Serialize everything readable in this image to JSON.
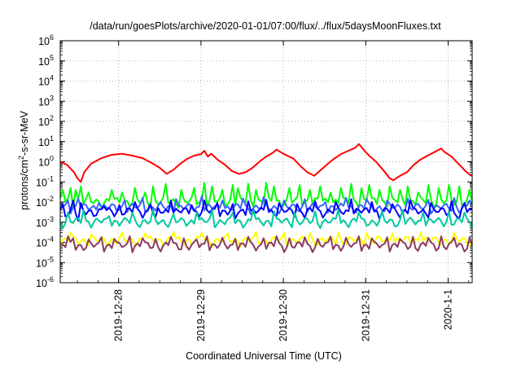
{
  "chart_data": {
    "type": "line",
    "title": "/data/run/goesPlots/archive/2020-01-01/07:00/flux/../flux/5daysMoonFluxes.txt",
    "xlabel": "Coordinated Universal Time (UTC)",
    "ylabel": {
      "prefix": "protons/cm",
      "sup": "2",
      "suffix": "-s-sr-MeV"
    },
    "yscale": "log",
    "ylim": [
      -6,
      6
    ],
    "y_ticks": [
      {
        "base": "10",
        "exp": "-6",
        "value": -6
      },
      {
        "base": "10",
        "exp": "-5",
        "value": -5
      },
      {
        "base": "10",
        "exp": "-4",
        "value": -4
      },
      {
        "base": "10",
        "exp": "-3",
        "value": -3
      },
      {
        "base": "10",
        "exp": "-2",
        "value": -2
      },
      {
        "base": "10",
        "exp": "-1",
        "value": -1
      },
      {
        "base": "10",
        "exp": "0",
        "value": 0
      },
      {
        "base": "10",
        "exp": "1",
        "value": 1
      },
      {
        "base": "10",
        "exp": "2",
        "value": 2
      },
      {
        "base": "10",
        "exp": "3",
        "value": 3
      },
      {
        "base": "10",
        "exp": "4",
        "value": 4
      },
      {
        "base": "10",
        "exp": "5",
        "value": 5
      },
      {
        "base": "10",
        "exp": "6",
        "value": 6
      }
    ],
    "xlim": [
      "2019-12-27 07:00",
      "2020-01-01 07:00"
    ],
    "x_ticks": [
      {
        "label": "2019-12-28",
        "value": "2019-12-28 00:00"
      },
      {
        "label": "2019-12-29",
        "value": "2019-12-29 00:00"
      },
      {
        "label": "2019-12-30",
        "value": "2019-12-30 00:00"
      },
      {
        "label": "2019-12-31",
        "value": "2019-12-31 00:00"
      },
      {
        "label": "2020-1-1",
        "value": "2020-01-01 00:00"
      }
    ],
    "grid": true,
    "grid_style": "dotted",
    "legend": "none",
    "series": [
      {
        "color": "#ff0000",
        "points": [
          [
            "2019-12-27 07:00",
            1.0
          ],
          [
            "2019-12-27 09:00",
            0.7
          ],
          [
            "2019-12-27 11:00",
            0.3
          ],
          [
            "2019-12-27 12:00",
            0.15
          ],
          [
            "2019-12-27 13:00",
            0.1
          ],
          [
            "2019-12-27 14:00",
            0.3
          ],
          [
            "2019-12-27 16:00",
            0.8
          ],
          [
            "2019-12-27 19:00",
            1.5
          ],
          [
            "2019-12-27 22:00",
            2.2
          ],
          [
            "2019-12-28 01:00",
            2.5
          ],
          [
            "2019-12-28 04:00",
            2.0
          ],
          [
            "2019-12-28 07:00",
            1.5
          ],
          [
            "2019-12-28 10:00",
            0.8
          ],
          [
            "2019-12-28 12:00",
            0.5
          ],
          [
            "2019-12-28 14:00",
            0.25
          ],
          [
            "2019-12-28 16:00",
            0.4
          ],
          [
            "2019-12-28 18:00",
            0.8
          ],
          [
            "2019-12-28 20:00",
            1.4
          ],
          [
            "2019-12-28 22:00",
            2.0
          ],
          [
            "2019-12-29 00:00",
            2.4
          ],
          [
            "2019-12-29 01:00",
            3.5
          ],
          [
            "2019-12-29 02:00",
            1.8
          ],
          [
            "2019-12-29 03:00",
            2.5
          ],
          [
            "2019-12-29 05:00",
            1.2
          ],
          [
            "2019-12-29 07:00",
            0.7
          ],
          [
            "2019-12-29 09:00",
            0.35
          ],
          [
            "2019-12-29 11:00",
            0.25
          ],
          [
            "2019-12-29 13:00",
            0.3
          ],
          [
            "2019-12-29 15:00",
            0.5
          ],
          [
            "2019-12-29 17:00",
            1.0
          ],
          [
            "2019-12-29 19:00",
            1.8
          ],
          [
            "2019-12-29 21:00",
            2.8
          ],
          [
            "2019-12-29 22:00",
            4.0
          ],
          [
            "2019-12-30 00:00",
            2.5
          ],
          [
            "2019-12-30 03:00",
            1.4
          ],
          [
            "2019-12-30 05:00",
            0.6
          ],
          [
            "2019-12-30 07:00",
            0.3
          ],
          [
            "2019-12-30 09:00",
            0.2
          ],
          [
            "2019-12-30 11:00",
            0.4
          ],
          [
            "2019-12-30 13:00",
            0.8
          ],
          [
            "2019-12-30 15:00",
            1.5
          ],
          [
            "2019-12-30 17:00",
            2.5
          ],
          [
            "2019-12-30 19:00",
            3.5
          ],
          [
            "2019-12-30 21:00",
            5.0
          ],
          [
            "2019-12-30 22:00",
            7.5
          ],
          [
            "2019-12-31 00:00",
            3.0
          ],
          [
            "2019-12-31 01:00",
            2.0
          ],
          [
            "2019-12-31 03:00",
            1.0
          ],
          [
            "2019-12-31 05:00",
            0.4
          ],
          [
            "2019-12-31 07:00",
            0.15
          ],
          [
            "2019-12-31 08:00",
            0.12
          ],
          [
            "2019-12-31 10:00",
            0.2
          ],
          [
            "2019-12-31 12:00",
            0.3
          ],
          [
            "2019-12-31 14:00",
            0.7
          ],
          [
            "2019-12-31 16:00",
            1.3
          ],
          [
            "2019-12-31 18:00",
            2.0
          ],
          [
            "2019-12-31 20:00",
            3.0
          ],
          [
            "2019-12-31 22:00",
            4.5
          ],
          [
            "2019-12-31 23:00",
            3.0
          ],
          [
            "2020-01-01 01:00",
            1.8
          ],
          [
            "2020-01-01 03:00",
            0.8
          ],
          [
            "2020-01-01 05:00",
            0.35
          ],
          [
            "2020-01-01 06:00",
            0.25
          ],
          [
            "2020-01-01 07:00",
            0.2
          ]
        ]
      },
      {
        "color": "#00ff00",
        "baseline": 0.011,
        "spikes": [
          [
            "2019-12-27 07:30",
            0.04
          ],
          [
            "2019-12-27 10:00",
            0.05
          ],
          [
            "2019-12-27 11:30",
            0.04
          ],
          [
            "2019-12-27 13:00",
            0.06
          ],
          [
            "2019-12-27 15:30",
            0.03
          ],
          [
            "2019-12-27 22:00",
            0.04
          ],
          [
            "2019-12-28 01:00",
            0.03
          ],
          [
            "2019-12-28 05:00",
            0.05
          ],
          [
            "2019-12-28 08:00",
            0.03
          ],
          [
            "2019-12-28 10:00",
            0.06
          ],
          [
            "2019-12-28 14:00",
            0.08
          ],
          [
            "2019-12-28 18:00",
            0.04
          ],
          [
            "2019-12-28 22:00",
            0.05
          ],
          [
            "2019-12-29 01:00",
            0.09
          ],
          [
            "2019-12-29 03:00",
            0.06
          ],
          [
            "2019-12-29 06:00",
            0.04
          ],
          [
            "2019-12-29 09:00",
            0.07
          ],
          [
            "2019-12-29 11:00",
            0.05
          ],
          [
            "2019-12-29 14:00",
            0.08
          ],
          [
            "2019-12-29 16:00",
            0.04
          ],
          [
            "2019-12-29 19:00",
            0.09
          ],
          [
            "2019-12-29 21:00",
            0.06
          ],
          [
            "2019-12-30 02:00",
            0.05
          ],
          [
            "2019-12-30 05:00",
            0.07
          ],
          [
            "2019-12-30 08:00",
            0.04
          ],
          [
            "2019-12-30 11:00",
            0.06
          ],
          [
            "2019-12-30 14:00",
            0.03
          ],
          [
            "2019-12-30 17:00",
            0.05
          ],
          [
            "2019-12-30 20:00",
            0.08
          ],
          [
            "2019-12-30 23:00",
            0.05
          ],
          [
            "2019-12-31 01:00",
            0.07
          ],
          [
            "2019-12-31 04:00",
            0.04
          ],
          [
            "2019-12-31 07:00",
            0.06
          ],
          [
            "2019-12-31 10:00",
            0.04
          ],
          [
            "2019-12-31 12:00",
            0.06
          ],
          [
            "2019-12-31 15:00",
            0.03
          ],
          [
            "2019-12-31 18:00",
            0.07
          ],
          [
            "2019-12-31 21:00",
            0.05
          ],
          [
            "2020-01-01 00:00",
            0.07
          ],
          [
            "2020-01-01 03:00",
            0.06
          ],
          [
            "2020-01-01 06:00",
            0.04
          ]
        ]
      },
      {
        "color": "#3b64ff",
        "baseline": 0.0055,
        "spikes": [
          [
            "2019-12-27 09:00",
            0.012
          ],
          [
            "2019-12-27 12:00",
            0.015
          ],
          [
            "2019-12-27 18:00",
            0.009
          ],
          [
            "2019-12-28 02:00",
            0.012
          ],
          [
            "2019-12-28 07:00",
            0.016
          ],
          [
            "2019-12-28 12:00",
            0.01
          ],
          [
            "2019-12-28 17:00",
            0.014
          ],
          [
            "2019-12-29 00:00",
            0.02
          ],
          [
            "2019-12-29 06:00",
            0.012
          ],
          [
            "2019-12-29 12:00",
            0.015
          ],
          [
            "2019-12-29 18:00",
            0.018
          ],
          [
            "2019-12-30 00:00",
            0.012
          ],
          [
            "2019-12-30 06:00",
            0.014
          ],
          [
            "2019-12-30 12:00",
            0.01
          ],
          [
            "2019-12-30 18:00",
            0.016
          ],
          [
            "2019-12-31 00:00",
            0.014
          ],
          [
            "2019-12-31 06:00",
            0.012
          ],
          [
            "2019-12-31 12:00",
            0.015
          ],
          [
            "2019-12-31 18:00",
            0.013
          ],
          [
            "2020-01-01 02:00",
            0.016
          ],
          [
            "2020-01-01 06:00",
            0.012
          ]
        ]
      },
      {
        "color": "#0000ff",
        "baseline": 0.0035,
        "spikes": [
          [
            "2019-12-27 08:00",
            0.008
          ],
          [
            "2019-12-27 10:30",
            0.012
          ],
          [
            "2019-12-27 13:00",
            0.009
          ],
          [
            "2019-12-27 20:00",
            0.006
          ],
          [
            "2019-12-28 00:00",
            0.007
          ],
          [
            "2019-12-28 05:00",
            0.01
          ],
          [
            "2019-12-28 09:00",
            0.008
          ],
          [
            "2019-12-28 15:00",
            0.012
          ],
          [
            "2019-12-28 21:00",
            0.007
          ],
          [
            "2019-12-29 01:00",
            0.012
          ],
          [
            "2019-12-29 05:00",
            0.009
          ],
          [
            "2019-12-29 09:00",
            0.008
          ],
          [
            "2019-12-29 14:00",
            0.011
          ],
          [
            "2019-12-29 19:00",
            0.013
          ],
          [
            "2019-12-29 23:00",
            0.009
          ],
          [
            "2019-12-30 04:00",
            0.008
          ],
          [
            "2019-12-30 09:00",
            0.011
          ],
          [
            "2019-12-30 15:00",
            0.01
          ],
          [
            "2019-12-30 20:00",
            0.014
          ],
          [
            "2019-12-31 02:00",
            0.01
          ],
          [
            "2019-12-31 08:00",
            0.008
          ],
          [
            "2019-12-31 13:00",
            0.012
          ],
          [
            "2019-12-31 19:00",
            0.009
          ],
          [
            "2020-01-01 01:00",
            0.011
          ],
          [
            "2020-01-01 05:00",
            0.009
          ]
        ],
        "dips": [
          [
            "2019-12-27 12:00",
            0.0012
          ],
          [
            "2019-12-28 11:00",
            0.0018
          ],
          [
            "2019-12-29 10:00",
            0.0015
          ],
          [
            "2019-12-30 06:00",
            0.0016
          ],
          [
            "2019-12-31 04:00",
            0.0014
          ],
          [
            "2020-01-01 03:00",
            0.0015
          ]
        ]
      },
      {
        "color": "#00c8a0",
        "baseline": 0.0011,
        "spikes": [
          [
            "2019-12-27 09:00",
            0.003
          ],
          [
            "2019-12-27 14:00",
            0.004
          ],
          [
            "2019-12-27 21:00",
            0.002
          ],
          [
            "2019-12-28 04:00",
            0.003
          ],
          [
            "2019-12-28 10:00",
            0.004
          ],
          [
            "2019-12-28 16:00",
            0.0025
          ],
          [
            "2019-12-28 23:00",
            0.003
          ],
          [
            "2019-12-29 03:00",
            0.004
          ],
          [
            "2019-12-29 09:00",
            0.003
          ],
          [
            "2019-12-29 15:00",
            0.004
          ],
          [
            "2019-12-29 21:00",
            0.0035
          ],
          [
            "2019-12-30 03:00",
            0.003
          ],
          [
            "2019-12-30 09:00",
            0.0035
          ],
          [
            "2019-12-30 16:00",
            0.004
          ],
          [
            "2019-12-30 22:00",
            0.003
          ],
          [
            "2019-12-31 05:00",
            0.0035
          ],
          [
            "2019-12-31 11:00",
            0.004
          ],
          [
            "2019-12-31 17:00",
            0.003
          ],
          [
            "2020-01-01 00:00",
            0.0035
          ],
          [
            "2020-01-01 05:00",
            0.003
          ]
        ]
      },
      {
        "color": "#ffff00",
        "baseline": 0.00013,
        "spikes": [
          [
            "2019-12-27 10:00",
            0.0003
          ],
          [
            "2019-12-27 16:00",
            0.00025
          ],
          [
            "2019-12-28 01:00",
            0.0003
          ],
          [
            "2019-12-28 08:00",
            0.00028
          ],
          [
            "2019-12-28 16:00",
            0.00032
          ],
          [
            "2019-12-29 00:00",
            0.0003
          ],
          [
            "2019-12-29 08:00",
            0.00028
          ],
          [
            "2019-12-29 16:00",
            0.00033
          ],
          [
            "2019-12-30 00:00",
            0.0003
          ],
          [
            "2019-12-30 08:00",
            0.00029
          ],
          [
            "2019-12-30 16:00",
            0.00031
          ],
          [
            "2019-12-31 00:00",
            0.0003
          ],
          [
            "2019-12-31 08:00",
            0.00028
          ],
          [
            "2019-12-31 16:00",
            0.00032
          ],
          [
            "2020-01-01 02:00",
            0.0003
          ]
        ]
      },
      {
        "color": "#8b3a62",
        "baseline": 7e-05,
        "spikes": [
          [
            "2019-12-27 09:00",
            0.0002
          ],
          [
            "2019-12-27 11:00",
            0.00016
          ],
          [
            "2019-12-27 15:00",
            0.00014
          ],
          [
            "2019-12-27 19:00",
            0.00018
          ],
          [
            "2019-12-27 23:00",
            0.00015
          ],
          [
            "2019-12-28 03:00",
            0.0002
          ],
          [
            "2019-12-28 07:00",
            0.00016
          ],
          [
            "2019-12-28 11:00",
            0.00015
          ],
          [
            "2019-12-28 15:00",
            0.00019
          ],
          [
            "2019-12-28 19:00",
            0.00016
          ],
          [
            "2019-12-28 23:00",
            0.00014
          ],
          [
            "2019-12-29 02:00",
            0.0002
          ],
          [
            "2019-12-29 06:00",
            0.00017
          ],
          [
            "2019-12-29 10:00",
            0.00015
          ],
          [
            "2019-12-29 14:00",
            0.00019
          ],
          [
            "2019-12-29 18:00",
            0.00016
          ],
          [
            "2019-12-29 22:00",
            0.0002
          ],
          [
            "2019-12-30 02:00",
            0.00016
          ],
          [
            "2019-12-30 06:00",
            0.00018
          ],
          [
            "2019-12-30 10:00",
            0.00015
          ],
          [
            "2019-12-30 14:00",
            0.00019
          ],
          [
            "2019-12-30 18:00",
            0.00017
          ],
          [
            "2019-12-30 22:00",
            0.0002
          ],
          [
            "2019-12-31 02:00",
            0.00016
          ],
          [
            "2019-12-31 06:00",
            0.00018
          ],
          [
            "2019-12-31 10:00",
            0.00015
          ],
          [
            "2019-12-31 14:00",
            0.00019
          ],
          [
            "2019-12-31 18:00",
            0.00017
          ],
          [
            "2019-12-31 22:00",
            0.0002
          ],
          [
            "2020-01-01 02:00",
            0.00017
          ],
          [
            "2020-01-01 06:00",
            0.00018
          ]
        ]
      }
    ]
  }
}
